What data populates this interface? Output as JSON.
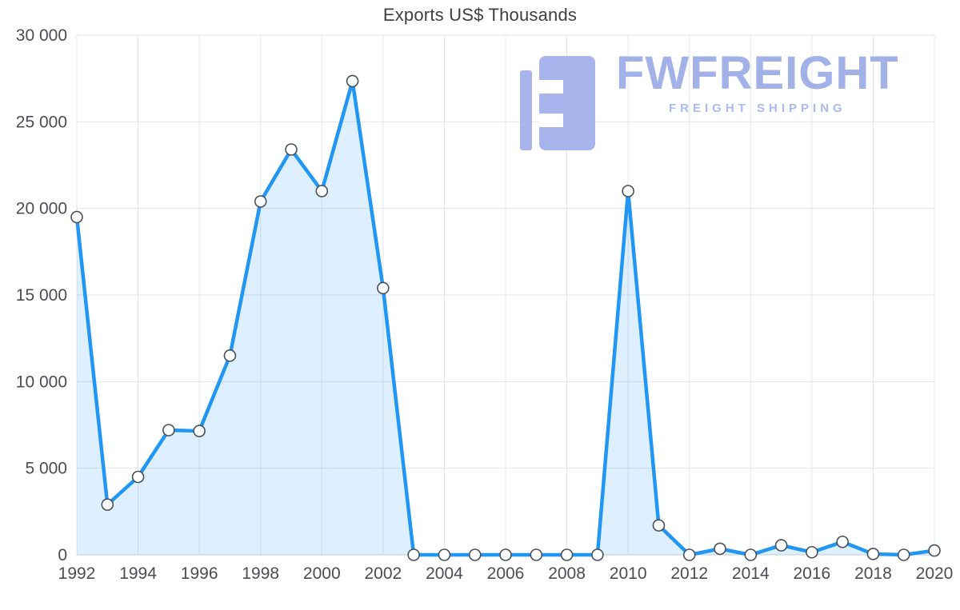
{
  "title": "Exports US$ Thousands",
  "watermark": {
    "brand": "FWFREIGHT",
    "tagline": "FREIGHT SHIPPING",
    "color": "#a3b1e9"
  },
  "chart_data": {
    "type": "area",
    "title": "Exports US$ Thousands",
    "x": [
      1992,
      1993,
      1994,
      1995,
      1996,
      1997,
      1998,
      1999,
      2000,
      2001,
      2002,
      2003,
      2004,
      2005,
      2006,
      2007,
      2008,
      2009,
      2010,
      2011,
      2012,
      2013,
      2014,
      2015,
      2016,
      2017,
      2018,
      2019,
      2020
    ],
    "values": [
      19500,
      2900,
      4500,
      7200,
      7150,
      11500,
      20400,
      23400,
      21000,
      27350,
      15400,
      0,
      0,
      0,
      0,
      0,
      0,
      0,
      21000,
      1700,
      0,
      350,
      0,
      550,
      150,
      750,
      50,
      0,
      250
    ],
    "ylim": [
      0,
      30000
    ],
    "yticks": [
      0,
      5000,
      10000,
      15000,
      20000,
      25000,
      30000
    ],
    "xtick_step": 2,
    "grid": true,
    "legend": "none",
    "xlabel": "",
    "ylabel": "",
    "line_color": "#2196f3",
    "fill_color": "rgba(33,150,243,0.15)",
    "marker_fill": "#ffffff",
    "marker_stroke": "#475059"
  }
}
